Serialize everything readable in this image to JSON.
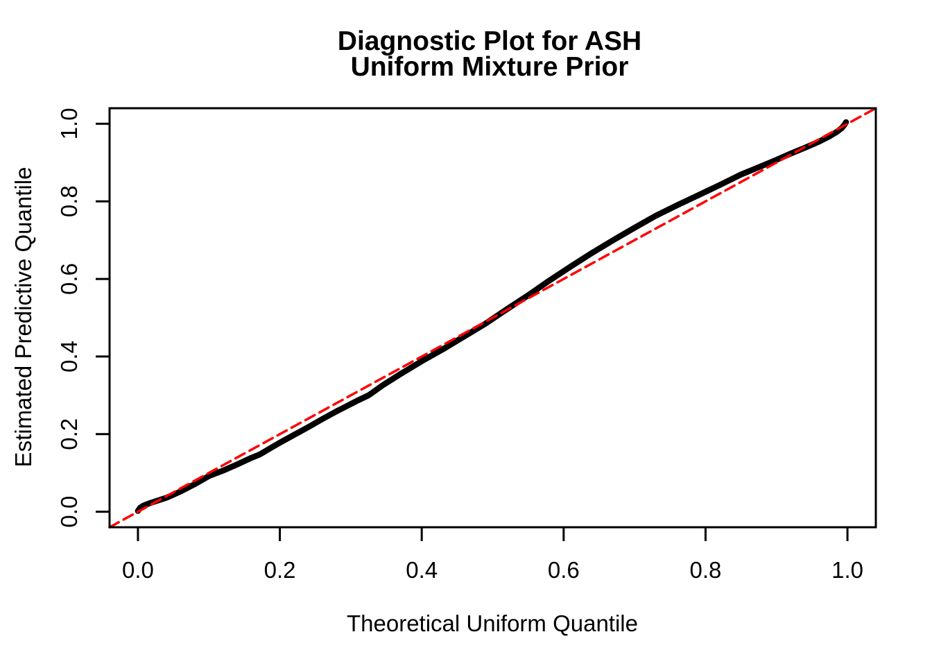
{
  "chart_data": {
    "type": "line",
    "subtype": "qq-diagnostic-plot",
    "title": "Diagnostic Plot for ASH\nUniform Mixture Prior",
    "title_lines": [
      "Diagnostic Plot for ASH",
      "Uniform Mixture Prior"
    ],
    "xlabel": "Theoretical Uniform Quantile",
    "ylabel": "Estimated Predictive Quantile",
    "xlim": [
      -0.04,
      1.04
    ],
    "ylim": [
      -0.04,
      1.04
    ],
    "grid": false,
    "legend": "none",
    "xticks": [
      0.0,
      0.2,
      0.4,
      0.6,
      0.8,
      1.0
    ],
    "yticks": [
      0.0,
      0.2,
      0.4,
      0.6,
      0.8,
      1.0
    ],
    "xtick_labels": [
      "0.0",
      "0.2",
      "0.4",
      "0.6",
      "0.8",
      "1.0"
    ],
    "ytick_labels": [
      "0.0",
      "0.2",
      "0.4",
      "0.6",
      "0.8",
      "1.0"
    ],
    "series": [
      {
        "name": "estimated-predictive-quantiles",
        "style": "solid",
        "color": "#000000",
        "line_width": 8.5,
        "points": [
          [
            0.0,
            0.002
          ],
          [
            0.003,
            0.01
          ],
          [
            0.008,
            0.016
          ],
          [
            0.015,
            0.021
          ],
          [
            0.025,
            0.027
          ],
          [
            0.04,
            0.036
          ],
          [
            0.06,
            0.052
          ],
          [
            0.08,
            0.071
          ],
          [
            0.1,
            0.092
          ],
          [
            0.12,
            0.106
          ],
          [
            0.14,
            0.122
          ],
          [
            0.16,
            0.139
          ],
          [
            0.172,
            0.148
          ],
          [
            0.185,
            0.162
          ],
          [
            0.2,
            0.178
          ],
          [
            0.22,
            0.198
          ],
          [
            0.24,
            0.218
          ],
          [
            0.26,
            0.239
          ],
          [
            0.28,
            0.259
          ],
          [
            0.295,
            0.273
          ],
          [
            0.31,
            0.287
          ],
          [
            0.325,
            0.3
          ],
          [
            0.345,
            0.326
          ],
          [
            0.37,
            0.355
          ],
          [
            0.4,
            0.388
          ],
          [
            0.43,
            0.419
          ],
          [
            0.46,
            0.452
          ],
          [
            0.49,
            0.485
          ],
          [
            0.52,
            0.522
          ],
          [
            0.55,
            0.558
          ],
          [
            0.58,
            0.596
          ],
          [
            0.61,
            0.632
          ],
          [
            0.64,
            0.667
          ],
          [
            0.67,
            0.7
          ],
          [
            0.7,
            0.732
          ],
          [
            0.73,
            0.763
          ],
          [
            0.76,
            0.79
          ],
          [
            0.79,
            0.816
          ],
          [
            0.82,
            0.842
          ],
          [
            0.85,
            0.869
          ],
          [
            0.875,
            0.888
          ],
          [
            0.9,
            0.907
          ],
          [
            0.92,
            0.923
          ],
          [
            0.94,
            0.938
          ],
          [
            0.96,
            0.954
          ],
          [
            0.975,
            0.968
          ],
          [
            0.985,
            0.979
          ],
          [
            0.992,
            0.989
          ],
          [
            0.996,
            0.998
          ],
          [
            0.998,
            1.004
          ]
        ]
      },
      {
        "name": "reference-diagonal-y-equals-x",
        "style": "dashed",
        "color": "#FF0000",
        "line_width": 3.5,
        "dash_pattern": [
          15,
          8
        ],
        "points": [
          [
            -0.04,
            -0.04
          ],
          [
            1.04,
            1.04
          ]
        ]
      }
    ]
  },
  "colors": {
    "background": "#ffffff",
    "axis": "#000000",
    "curve": "#000000",
    "reference_line": "#FF0000"
  }
}
